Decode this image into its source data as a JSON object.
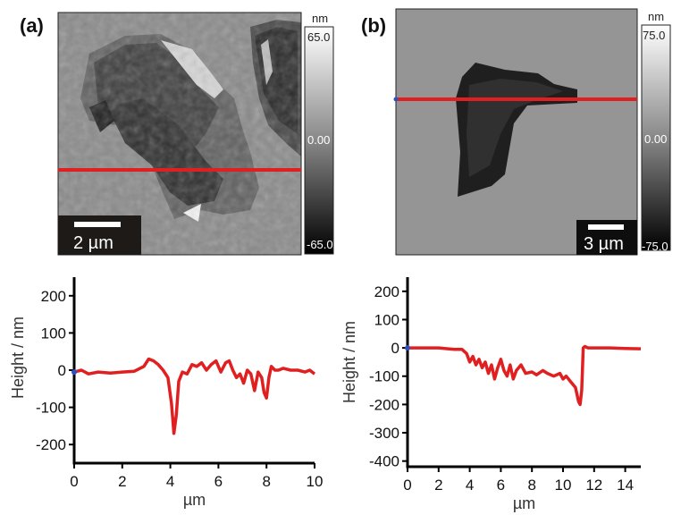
{
  "panels": [
    {
      "label": "(a)",
      "colorbar": {
        "unit": "nm",
        "max": "65.0",
        "mid": "0.00",
        "min": "-65.0"
      },
      "scalebar": "2 µm"
    },
    {
      "label": "(b)",
      "colorbar": {
        "unit": "nm",
        "max": "75.0",
        "mid": "0.00",
        "min": "-75.0"
      },
      "scalebar": "3 µm"
    }
  ],
  "colors": {
    "profile_line": "#e02020",
    "marker": "#3050c0",
    "axis": "#000000"
  },
  "chart_data": [
    {
      "type": "line",
      "xlabel": "µm",
      "ylabel": "Height  / nm",
      "xlim": [
        0,
        10
      ],
      "ylim": [
        -250,
        250
      ],
      "xticks": [
        0,
        2,
        4,
        6,
        8,
        10
      ],
      "yticks": [
        -200,
        -100,
        0,
        100,
        200
      ],
      "series": [
        {
          "x": [
            0,
            0.3,
            0.6,
            1,
            1.5,
            2,
            2.5,
            2.9,
            3.1,
            3.3,
            3.5,
            3.7,
            3.9,
            4.05,
            4.15,
            4.25,
            4.35,
            4.5,
            4.7,
            4.9,
            5.1,
            5.3,
            5.5,
            5.7,
            5.9,
            6.1,
            6.3,
            6.45,
            6.6,
            6.75,
            6.9,
            7.05,
            7.2,
            7.35,
            7.5,
            7.65,
            7.8,
            7.9,
            8.0,
            8.1,
            8.2,
            8.35,
            8.5,
            8.7,
            9.0,
            9.3,
            9.6,
            9.8,
            10
          ],
          "y": [
            -5,
            0,
            -10,
            -5,
            -8,
            -5,
            -3,
            10,
            30,
            25,
            15,
            0,
            -20,
            -90,
            -170,
            -120,
            -30,
            -5,
            -10,
            15,
            10,
            20,
            0,
            15,
            25,
            -5,
            20,
            25,
            0,
            -20,
            -10,
            -35,
            0,
            -10,
            -55,
            -5,
            -20,
            -60,
            -75,
            -20,
            10,
            0,
            0,
            5,
            0,
            0,
            -5,
            0,
            -10
          ]
        }
      ]
    },
    {
      "type": "line",
      "xlabel": "µm",
      "ylabel": "Height  / nm",
      "xlim": [
        0,
        15
      ],
      "ylim": [
        -420,
        250
      ],
      "xticks": [
        0,
        2,
        4,
        6,
        8,
        10,
        12,
        14
      ],
      "yticks": [
        -400,
        -300,
        -200,
        -100,
        0,
        100,
        200
      ],
      "series": [
        {
          "x": [
            0,
            1,
            2,
            3,
            3.5,
            3.8,
            4.0,
            4.2,
            4.4,
            4.6,
            4.8,
            5.0,
            5.2,
            5.4,
            5.6,
            5.8,
            6.0,
            6.2,
            6.4,
            6.6,
            6.8,
            7.0,
            7.3,
            7.6,
            8.0,
            8.3,
            8.7,
            9.0,
            9.4,
            9.8,
            10.0,
            10.2,
            10.5,
            10.8,
            11.0,
            11.1,
            11.2,
            11.3,
            11.4,
            11.6,
            12,
            13,
            14,
            15
          ],
          "y": [
            0,
            0,
            0,
            -5,
            -5,
            -20,
            -50,
            -30,
            -60,
            -40,
            -70,
            -50,
            -90,
            -60,
            -110,
            -70,
            -40,
            -80,
            -100,
            -60,
            -110,
            -80,
            -60,
            -90,
            -85,
            -95,
            -80,
            -90,
            -100,
            -90,
            -110,
            -100,
            -120,
            -140,
            -190,
            -200,
            -150,
            0,
            5,
            0,
            0,
            0,
            -2,
            -3
          ]
        }
      ]
    }
  ]
}
